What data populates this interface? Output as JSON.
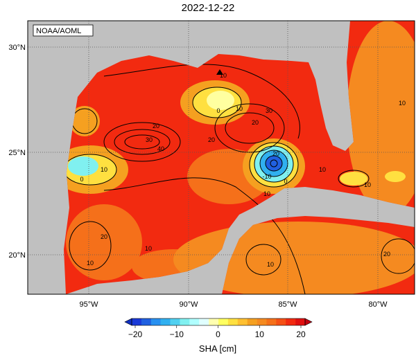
{
  "title": "2022-12-22",
  "credit": "NOAA/AOML",
  "lat_labels": [
    "30°N",
    "25°N",
    "20°N"
  ],
  "lon_labels": [
    "95°W",
    "90°W",
    "85°W",
    "80°W"
  ],
  "colorbar": {
    "label": "SHA [cm]",
    "ticks": [
      "−20",
      "−10",
      "0",
      "10",
      "20"
    ]
  },
  "contour_labels": [
    "10",
    "0",
    "10",
    "20",
    "30",
    "40",
    "20",
    "10",
    "20",
    "30",
    "-10",
    "0",
    "20",
    "10",
    "10",
    "0",
    "10",
    "20",
    "10",
    "10",
    "10",
    "20",
    "10"
  ]
}
